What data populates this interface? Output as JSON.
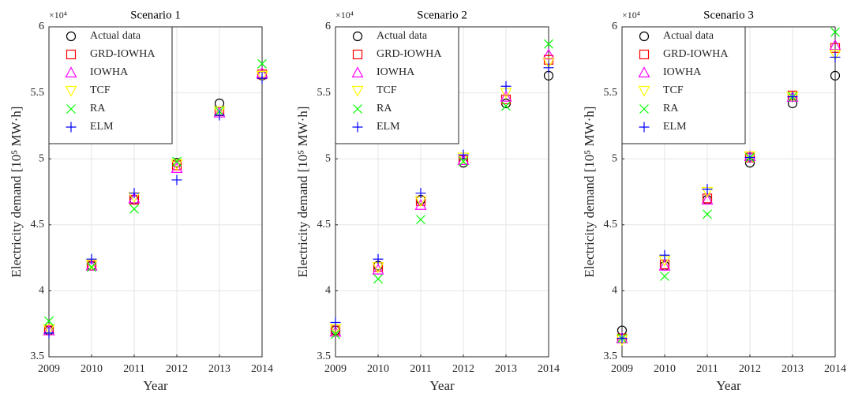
{
  "chart_data": [
    {
      "type": "scatter",
      "title": "Scenario 1",
      "xlabel": "Year",
      "ylabel": "Electricity demand [10⁵ MW·h]",
      "y_multiplier": "×10⁴",
      "x": [
        2009,
        2010,
        2011,
        2012,
        2013,
        2014
      ],
      "xlim": [
        2009,
        2014
      ],
      "ylim": [
        3.5,
        6
      ],
      "xticks": [
        2009,
        2010,
        2011,
        2012,
        2013,
        2014
      ],
      "yticks": [
        3.5,
        4,
        4.5,
        5,
        5.5,
        6
      ],
      "grid": true,
      "legend": "upper left",
      "series": [
        {
          "name": "Actual data",
          "color": "#000000",
          "marker": "circle",
          "values": [
            3.7,
            4.19,
            4.69,
            4.97,
            5.42,
            5.63
          ]
        },
        {
          "name": "GRD-IOWHA",
          "color": "#ff0000",
          "marker": "square",
          "values": [
            3.7,
            4.19,
            4.69,
            4.95,
            5.36,
            5.64
          ]
        },
        {
          "name": "IOWHA",
          "color": "#ff00ff",
          "marker": "triangle-up",
          "values": [
            3.7,
            4.19,
            4.7,
            4.93,
            5.35,
            5.65
          ]
        },
        {
          "name": "TCF",
          "color": "#ffff00",
          "marker": "triangle-down",
          "values": [
            3.71,
            4.2,
            4.71,
            4.96,
            5.36,
            5.63
          ]
        },
        {
          "name": "RA",
          "color": "#00ff00",
          "marker": "x",
          "values": [
            3.77,
            4.18,
            4.62,
            4.98,
            5.36,
            5.72
          ]
        },
        {
          "name": "ELM",
          "color": "#0000ff",
          "marker": "plus",
          "values": [
            3.68,
            4.24,
            4.74,
            4.84,
            5.33,
            5.61
          ]
        }
      ]
    },
    {
      "type": "scatter",
      "title": "Scenario 2",
      "xlabel": "Year",
      "ylabel": "Electricity demand [10⁵ MW·h]",
      "y_multiplier": "×10⁴",
      "x": [
        2009,
        2010,
        2011,
        2012,
        2013,
        2014
      ],
      "xlim": [
        2009,
        2014
      ],
      "ylim": [
        3.5,
        6
      ],
      "xticks": [
        2009,
        2010,
        2011,
        2012,
        2013,
        2014
      ],
      "yticks": [
        3.5,
        4,
        4.5,
        5,
        5.5,
        6
      ],
      "grid": true,
      "legend": "upper left",
      "series": [
        {
          "name": "Actual data",
          "color": "#000000",
          "marker": "circle",
          "values": [
            3.7,
            4.19,
            4.69,
            4.97,
            5.42,
            5.63
          ]
        },
        {
          "name": "GRD-IOWHA",
          "color": "#ff0000",
          "marker": "square",
          "values": [
            3.7,
            4.18,
            4.68,
            4.99,
            5.45,
            5.75
          ]
        },
        {
          "name": "IOWHA",
          "color": "#ff00ff",
          "marker": "triangle-up",
          "values": [
            3.69,
            4.16,
            4.65,
            4.99,
            5.47,
            5.79
          ]
        },
        {
          "name": "TCF",
          "color": "#ffff00",
          "marker": "triangle-down",
          "values": [
            3.71,
            4.18,
            4.68,
            5.01,
            5.5,
            5.73
          ]
        },
        {
          "name": "RA",
          "color": "#00ff00",
          "marker": "x",
          "values": [
            3.67,
            4.09,
            4.54,
            4.98,
            5.4,
            5.87
          ]
        },
        {
          "name": "ELM",
          "color": "#0000ff",
          "marker": "plus",
          "values": [
            3.76,
            4.24,
            4.74,
            5.03,
            5.55,
            5.69
          ]
        }
      ]
    },
    {
      "type": "scatter",
      "title": "Scenario 3",
      "xlabel": "Year",
      "ylabel": "Electricity demand [10⁵ MW·h]",
      "y_multiplier": "×10⁴",
      "x": [
        2009,
        2010,
        2011,
        2012,
        2013,
        2014
      ],
      "xlim": [
        2009,
        2014
      ],
      "ylim": [
        3.5,
        6
      ],
      "xticks": [
        2009,
        2010,
        2011,
        2012,
        2013,
        2014
      ],
      "yticks": [
        3.5,
        4,
        4.5,
        5,
        5.5,
        6
      ],
      "grid": true,
      "legend": "upper left",
      "series": [
        {
          "name": "Actual data",
          "color": "#000000",
          "marker": "circle",
          "values": [
            3.7,
            4.19,
            4.69,
            4.97,
            5.42,
            5.63
          ]
        },
        {
          "name": "GRD-IOWHA",
          "color": "#ff0000",
          "marker": "square",
          "values": [
            3.64,
            4.2,
            4.7,
            5.01,
            5.48,
            5.84
          ]
        },
        {
          "name": "IOWHA",
          "color": "#ff00ff",
          "marker": "triangle-up",
          "values": [
            3.64,
            4.19,
            4.69,
            5.02,
            5.47,
            5.86
          ]
        },
        {
          "name": "TCF",
          "color": "#ffff00",
          "marker": "triangle-down",
          "values": [
            3.63,
            4.23,
            4.75,
            5.02,
            5.47,
            5.79
          ]
        },
        {
          "name": "RA",
          "color": "#00ff00",
          "marker": "x",
          "values": [
            3.64,
            4.11,
            4.58,
            5.01,
            5.47,
            5.96
          ]
        },
        {
          "name": "ELM",
          "color": "#0000ff",
          "marker": "plus",
          "values": [
            3.64,
            4.27,
            4.77,
            5.01,
            5.47,
            5.77
          ]
        }
      ]
    }
  ]
}
